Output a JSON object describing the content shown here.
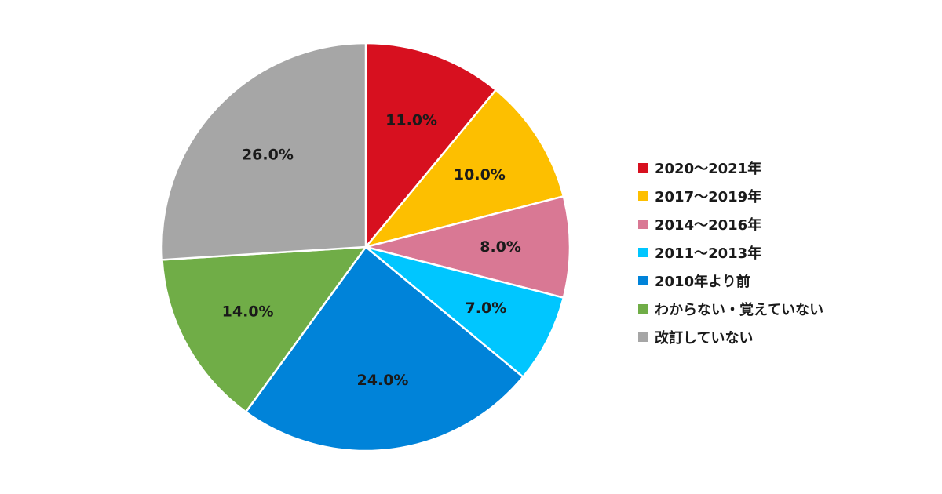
{
  "chart_data": {
    "type": "pie",
    "title": "",
    "unit": "%",
    "categories": [
      "2020～2021年",
      "2017～2019年",
      "2014～2016年",
      "2011～2013年",
      "2010年より前",
      "わからない・覚えていない",
      "改訂していない"
    ],
    "values": [
      11.0,
      10.0,
      8.0,
      7.0,
      24.0,
      14.0,
      26.0
    ],
    "value_labels": [
      "11.0%",
      "10.0%",
      "8.0%",
      "7.0%",
      "24.0%",
      "14.0%",
      "26.0%"
    ],
    "colors": [
      "#d7101f",
      "#fdbf00",
      "#d97894",
      "#00c6ff",
      "#0083d9",
      "#70ad47",
      "#a6a6a6"
    ],
    "start_angle_deg": 0,
    "direction": "clockwise",
    "legend_position": "right"
  }
}
